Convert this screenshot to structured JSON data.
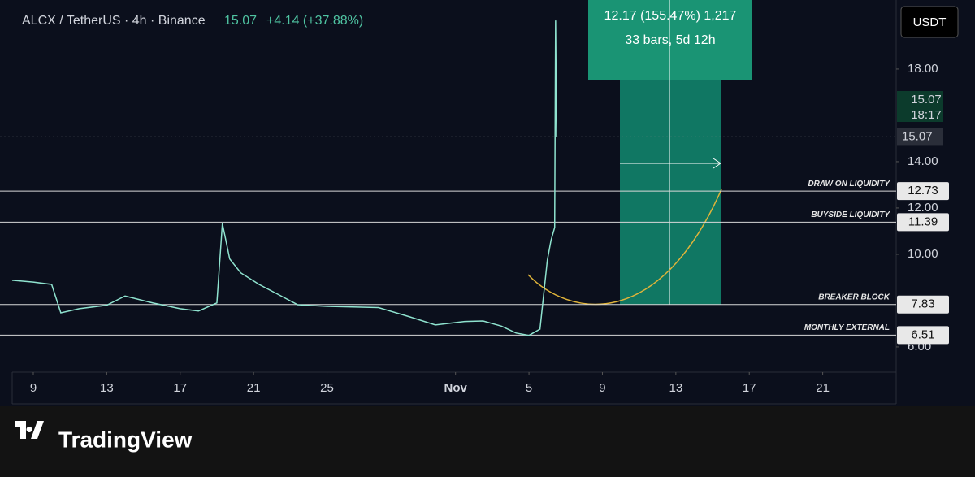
{
  "header": {
    "symbol": "ALCX / TetherUS · 4h · Binance",
    "change": "+4.14 (+37.88%)"
  },
  "currency_button": "USDT",
  "brand": "TradingView",
  "measure": {
    "label": "12.17 (155.47%) 1,217",
    "bars_label": "33 bars, 5d 12h"
  },
  "last_price": 15.07,
  "countdown": "18:17",
  "levels": [
    {
      "label": "DRAW ON LIQUIDITY",
      "value": 12.73
    },
    {
      "label": "BUYSIDE LIQUIDITY",
      "value": 11.39
    },
    {
      "label": "BREAKER BLOCK",
      "value": 7.83
    },
    {
      "label": "MONTHLY EXTERNAL",
      "value": 6.51
    }
  ],
  "chart_data": {
    "type": "line",
    "series": [
      {
        "name": "ALCX",
        "color": "#8fe3cf",
        "x": [
          7.85,
          9,
          10,
          10.5,
          11.5,
          13,
          14,
          15.5,
          17,
          18,
          19,
          19.3,
          19.7,
          20.3,
          21.3,
          22.5,
          23.4,
          25,
          27.8,
          29.5,
          30.9,
          32.5,
          33.5,
          34.5,
          35.3,
          36,
          36.6,
          37,
          37.2,
          37.4,
          37.45,
          37.5
        ],
        "values": [
          8.88,
          8.8,
          8.7,
          7.47,
          7.65,
          7.8,
          8.2,
          7.9,
          7.65,
          7.55,
          7.9,
          11.33,
          9.8,
          9.2,
          8.7,
          8.2,
          7.82,
          7.75,
          7.7,
          7.3,
          6.95,
          7.1,
          7.12,
          6.9,
          6.6,
          6.5,
          6.77,
          9.75,
          10.6,
          11.16,
          20.1,
          15.07
        ]
      }
    ],
    "xlim": [
      7.85,
      56
    ],
    "xticks": [
      9,
      13,
      17,
      21,
      25,
      {
        "value": 32,
        "label": "Nov"
      },
      {
        "value": 36,
        "label": "5"
      },
      {
        "value": 40,
        "label": "9"
      },
      {
        "value": 44,
        "label": "13"
      },
      {
        "value": 48,
        "label": "17"
      },
      {
        "value": 52,
        "label": "21"
      }
    ],
    "ylim": [
      4.91,
      20.98
    ],
    "yticks": [
      {
        "value": 18,
        "label": "18.00"
      },
      {
        "value": 14,
        "label": "14.00"
      },
      {
        "value": 12,
        "label": "12.00"
      },
      {
        "value": 10,
        "label": "10.00"
      },
      {
        "value": 6,
        "label": "6.00"
      }
    ]
  }
}
